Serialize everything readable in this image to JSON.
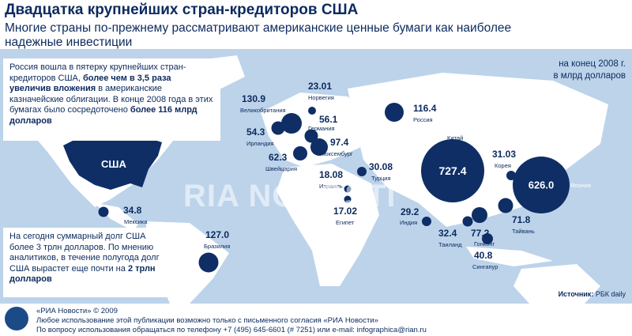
{
  "header": {
    "title": "Двадцатка крупнейших стран-кредиторов США",
    "subtitle": "Многие страны по-прежнему рассматривают американские ценные бумаги как наиболее надежные инвестиции"
  },
  "units": {
    "line1": "на конец 2008 г.",
    "line2": "в млрд долларов"
  },
  "info_top": {
    "t1": "Россия вошла в пятерку крупнейших стран-кредиторов США, ",
    "b1": "более чем в 3,5 раза увеличив вложения",
    "t2": " в американские казначейские облигации. В конце 2008 года в этих бумагах было сосредоточено ",
    "b2": "более 116 млрд долларов"
  },
  "info_bottom": {
    "t1": "На сегодня суммарный долг США более 3 трлн долларов. По мнению аналитиков, в течение полугода долг США вырастет еще почти на ",
    "b1": "2 трлн долларов"
  },
  "usa_label": "США",
  "countries": [
    {
      "name": "Китай",
      "value": "727.4"
    },
    {
      "name": "Япония",
      "value": "626.0"
    },
    {
      "name": "Великобритания",
      "value": "130.9"
    },
    {
      "name": "Бразилия",
      "value": "127.0"
    },
    {
      "name": "Россия",
      "value": "116.4"
    },
    {
      "name": "Люксембург",
      "value": "97.4"
    },
    {
      "name": "Гонконг",
      "value": "77.2"
    },
    {
      "name": "Тайвань",
      "value": "71.8"
    },
    {
      "name": "Швейцария",
      "value": "62.3"
    },
    {
      "name": "Германия",
      "value": "56.1"
    },
    {
      "name": "Ирландия",
      "value": "54.3"
    },
    {
      "name": "Сингапур",
      "value": "40.8"
    },
    {
      "name": "Мексика",
      "value": "34.8"
    },
    {
      "name": "Таиланд",
      "value": "32.4"
    },
    {
      "name": "Корея",
      "value": "31.03"
    },
    {
      "name": "Турция",
      "value": "30.08"
    },
    {
      "name": "Индия",
      "value": "29.2"
    },
    {
      "name": "Норвегия",
      "value": "23.01"
    },
    {
      "name": "Израиль",
      "value": "18.08"
    },
    {
      "name": "Египет",
      "value": "17.02"
    }
  ],
  "source": {
    "label": "Источник:",
    "text": "РБК daily"
  },
  "watermark": "RIA NOVOSTI",
  "footer": {
    "line1": "«РИА Новости» © 2009",
    "line2": "Любое использование этой публикации возможно только с письменного согласия «РИА Новости»",
    "line3": "По вопросу использования обращаться по телефону +7 (495) 645-6601 (# 7251) или e-mail: infographica@rian.ru"
  },
  "colors": {
    "bubble": "#0f2e66",
    "land": "#ffffff",
    "ocean": "#bcd3ea",
    "text": "#0c2a5e"
  }
}
